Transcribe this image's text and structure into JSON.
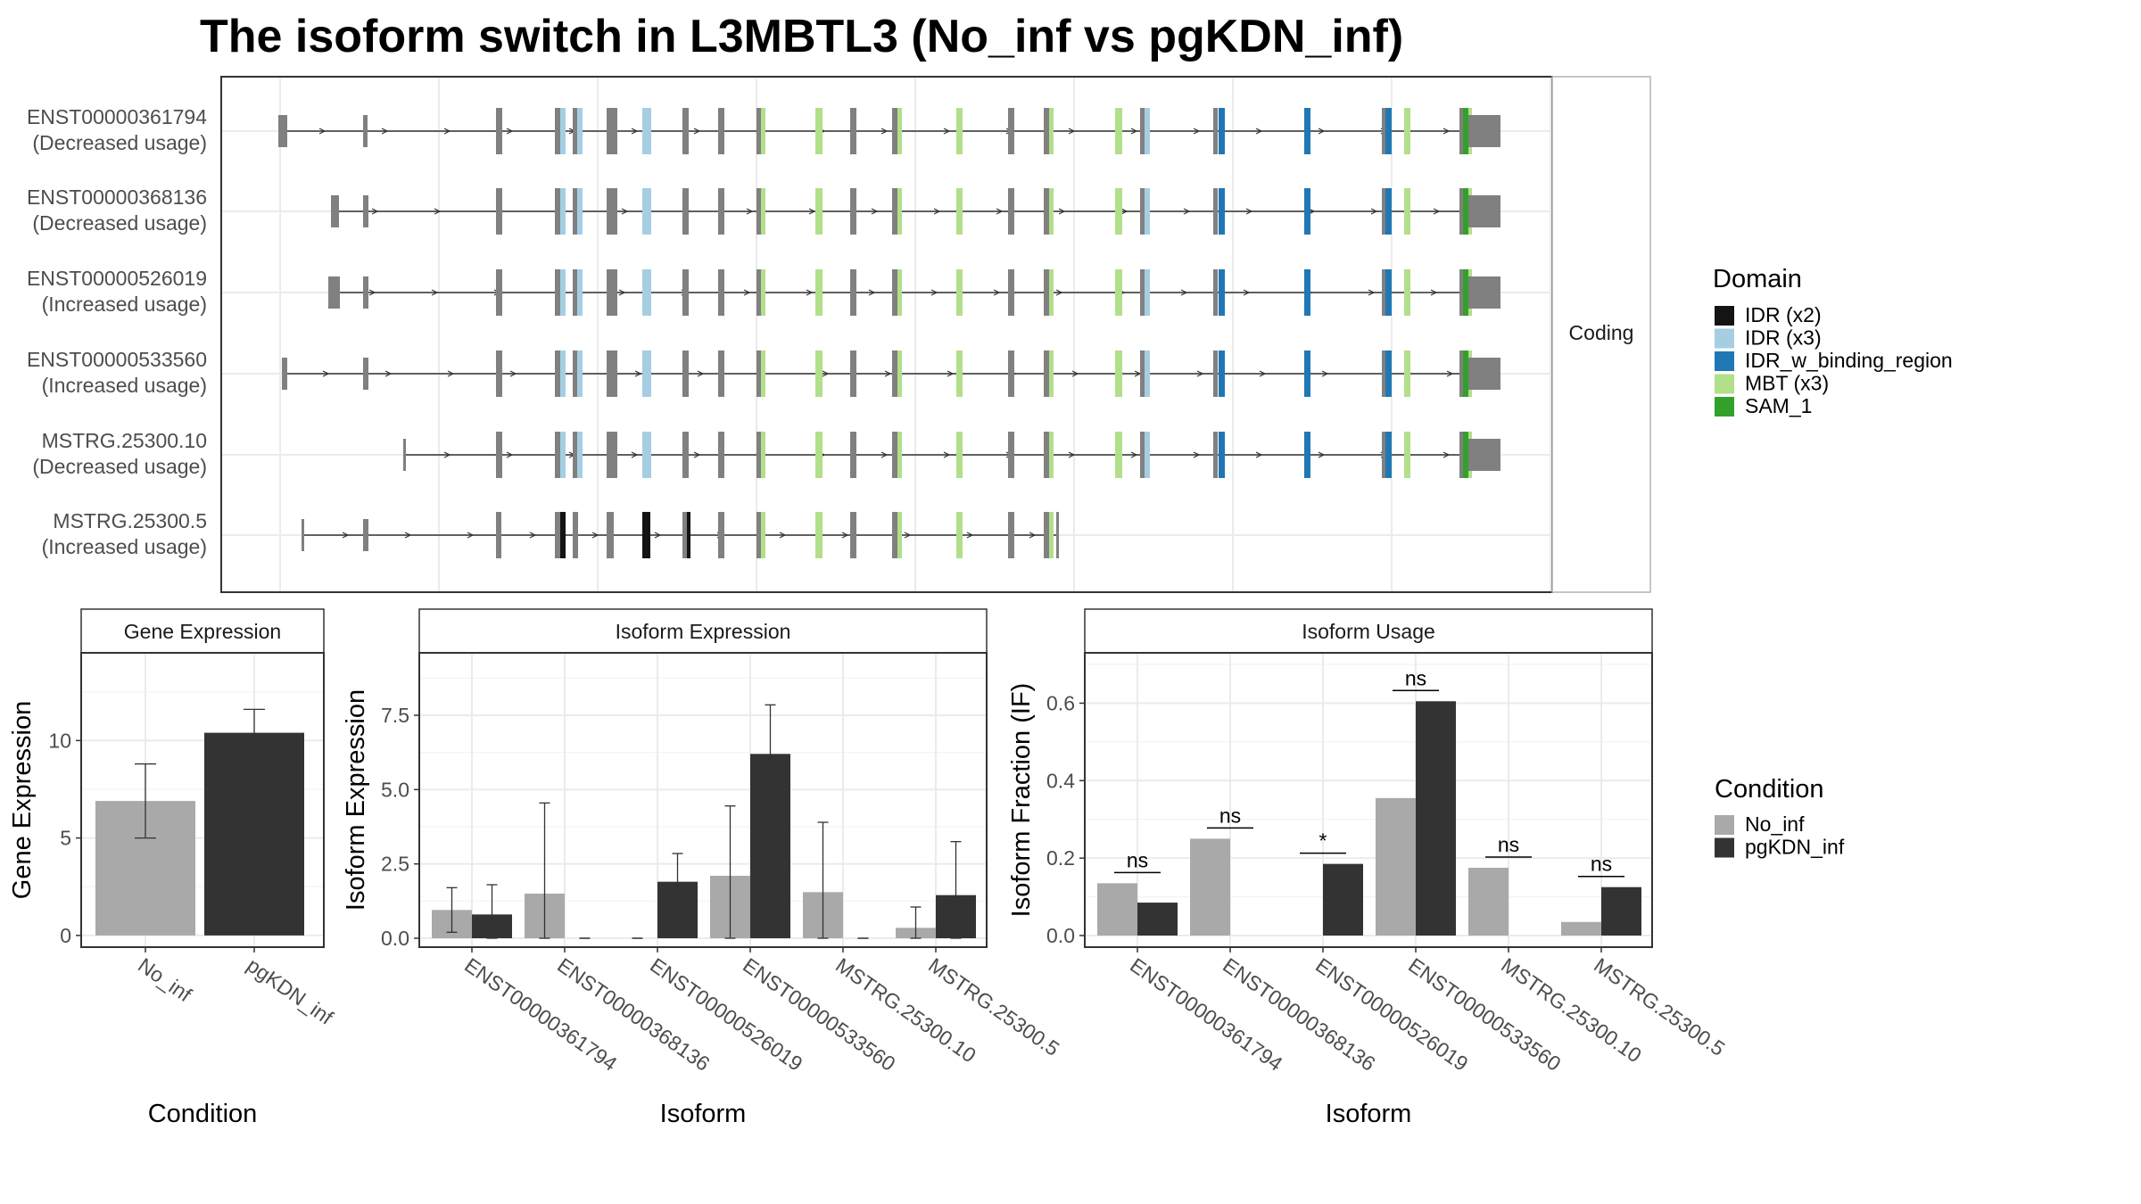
{
  "title": "The isoform switch in L3MBTL3 (No_inf vs pgKDN_inf)",
  "structure": {
    "strip_label": "Coding",
    "isoforms": [
      {
        "id": "ENST00000361794",
        "usage": "(Decreased usage)"
      },
      {
        "id": "ENST00000368136",
        "usage": "(Decreased usage)"
      },
      {
        "id": "ENST00000526019",
        "usage": "(Increased usage)"
      },
      {
        "id": "ENST00000533560",
        "usage": "(Increased usage)"
      },
      {
        "id": "MSTRG.25300.10",
        "usage": "(Decreased usage)"
      },
      {
        "id": "MSTRG.25300.5",
        "usage": "(Increased usage)"
      }
    ]
  },
  "domain_legend": {
    "title": "Domain",
    "items": [
      {
        "label": "IDR (x2)",
        "color": "#141414"
      },
      {
        "label": "IDR (x3)",
        "color": "#a6cee3"
      },
      {
        "label": "IDR_w_binding_region",
        "color": "#1f78b4"
      },
      {
        "label": "MBT (x3)",
        "color": "#b2df8a"
      },
      {
        "label": "SAM_1",
        "color": "#33a02c"
      }
    ]
  },
  "condition_legend": {
    "title": "Condition",
    "items": [
      {
        "label": "No_inf",
        "color": "#a9a9a9"
      },
      {
        "label": "pgKDN_inf",
        "color": "#333333"
      }
    ]
  },
  "chart_data": [
    {
      "type": "bar",
      "title": "Gene Expression",
      "xlabel": "Condition",
      "ylabel": "Gene Expression",
      "categories": [
        "No_inf",
        "pgKDN_inf"
      ],
      "values": [
        6.9,
        10.4
      ],
      "error_low": [
        5.0,
        9.1
      ],
      "error_high": [
        8.8,
        11.6
      ],
      "ylim": [
        -0.6,
        14.5
      ],
      "yticks": [
        0,
        5,
        10
      ],
      "grid": true
    },
    {
      "type": "bar",
      "title": "Isoform Expression",
      "xlabel": "Isoform",
      "ylabel": "Isoform Expression",
      "categories": [
        "ENST00000361794",
        "ENST00000368136",
        "ENST00000526019",
        "ENST00000533560",
        "MSTRG.25300.10",
        "MSTRG.25300.5"
      ],
      "series": [
        {
          "name": "No_inf",
          "values": [
            0.95,
            1.5,
            0.0,
            2.1,
            1.55,
            0.35
          ],
          "error_low": [
            0.2,
            0.0,
            0.0,
            0.0,
            0.0,
            0.0
          ],
          "error_high": [
            1.7,
            4.55,
            0.0,
            4.45,
            3.9,
            1.05
          ]
        },
        {
          "name": "pgKDN_inf",
          "values": [
            0.8,
            0.0,
            1.9,
            6.2,
            0.0,
            1.45
          ],
          "error_low": [
            0.0,
            0.0,
            0.95,
            4.6,
            0.0,
            0.0
          ],
          "error_high": [
            1.8,
            0.0,
            2.85,
            7.85,
            0.0,
            3.25
          ]
        }
      ],
      "ylim": [
        -0.3,
        9.6
      ],
      "yticks": [
        0.0,
        2.5,
        5.0,
        7.5
      ],
      "grid": true
    },
    {
      "type": "bar",
      "title": "Isoform Usage",
      "xlabel": "Isoform",
      "ylabel": "Isoform Fraction (IF)",
      "categories": [
        "ENST00000361794",
        "ENST00000368136",
        "ENST00000526019",
        "ENST00000533560",
        "MSTRG.25300.10",
        "MSTRG.25300.5"
      ],
      "series": [
        {
          "name": "No_inf",
          "values": [
            0.135,
            0.25,
            0.0,
            0.355,
            0.175,
            0.035
          ]
        },
        {
          "name": "pgKDN_inf",
          "values": [
            0.085,
            0.0,
            0.185,
            0.605,
            0.0,
            0.125
          ]
        }
      ],
      "significance": [
        "ns",
        "ns",
        "*",
        "ns",
        "ns",
        "ns"
      ],
      "ylim": [
        -0.03,
        0.73
      ],
      "yticks": [
        0.0,
        0.2,
        0.4,
        0.6
      ],
      "grid": true
    }
  ]
}
